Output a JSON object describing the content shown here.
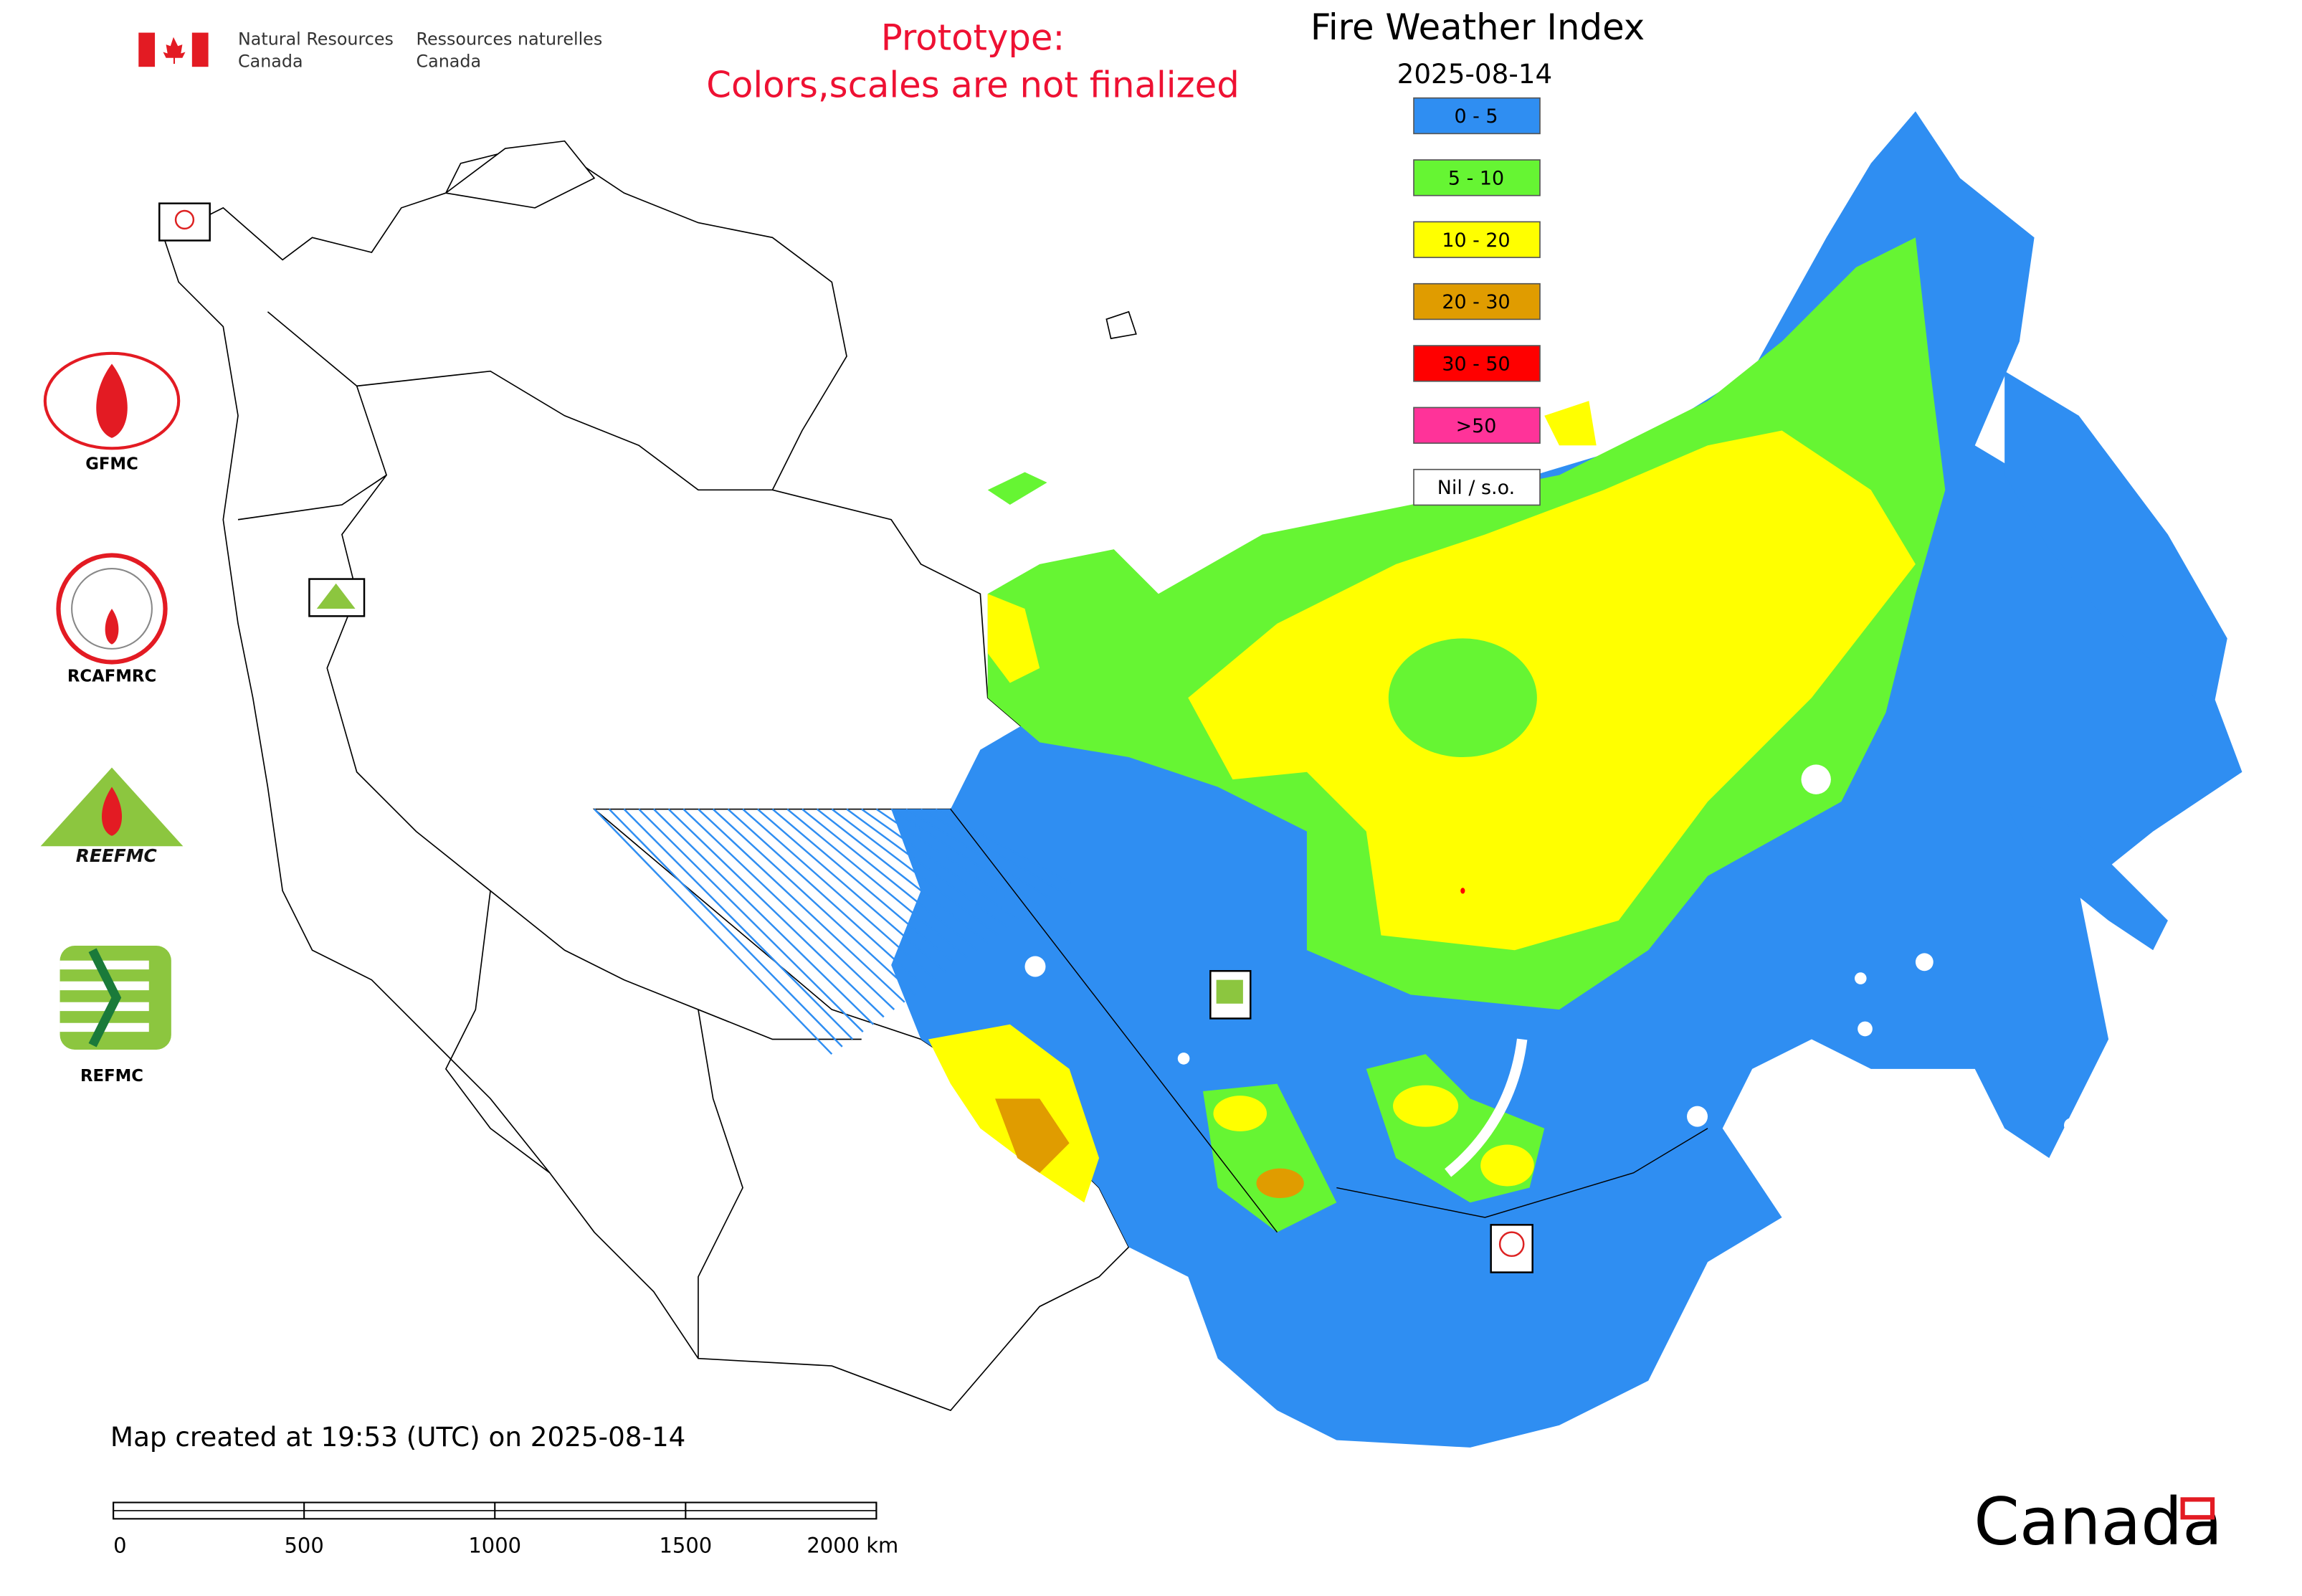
{
  "header": {
    "agency_en": [
      "Natural Resources",
      "Canada"
    ],
    "agency_fr": [
      "Ressources naturelles",
      "Canada"
    ],
    "notice": [
      "Prototype:",
      "Colors,scales are not finalized"
    ]
  },
  "map": {
    "title": "Fire Weather Index",
    "date": "2025-08-14",
    "legend": [
      {
        "label": "0 - 5",
        "color": "#2f8ef2"
      },
      {
        "label": "5 - 10",
        "color": "#66f533"
      },
      {
        "label": "10 - 20",
        "color": "#ffff00"
      },
      {
        "label": "20 - 30",
        "color": "#e09c00"
      },
      {
        "label": "30 - 50",
        "color": "#ff0000"
      },
      {
        "label": ">50",
        "color": "#ff3399"
      },
      {
        "label": "Nil / s.o.",
        "color": "#ffffff"
      }
    ],
    "logos": [
      "GFMC",
      "RCAFMRC",
      "REEFMC",
      "REFMC"
    ],
    "footer": "Map created at 19:53 (UTC) on 2025-08-14",
    "scale_labels": [
      "0",
      "500",
      "1000",
      "1500",
      "2000 km"
    ],
    "wordmark": "Canada"
  }
}
